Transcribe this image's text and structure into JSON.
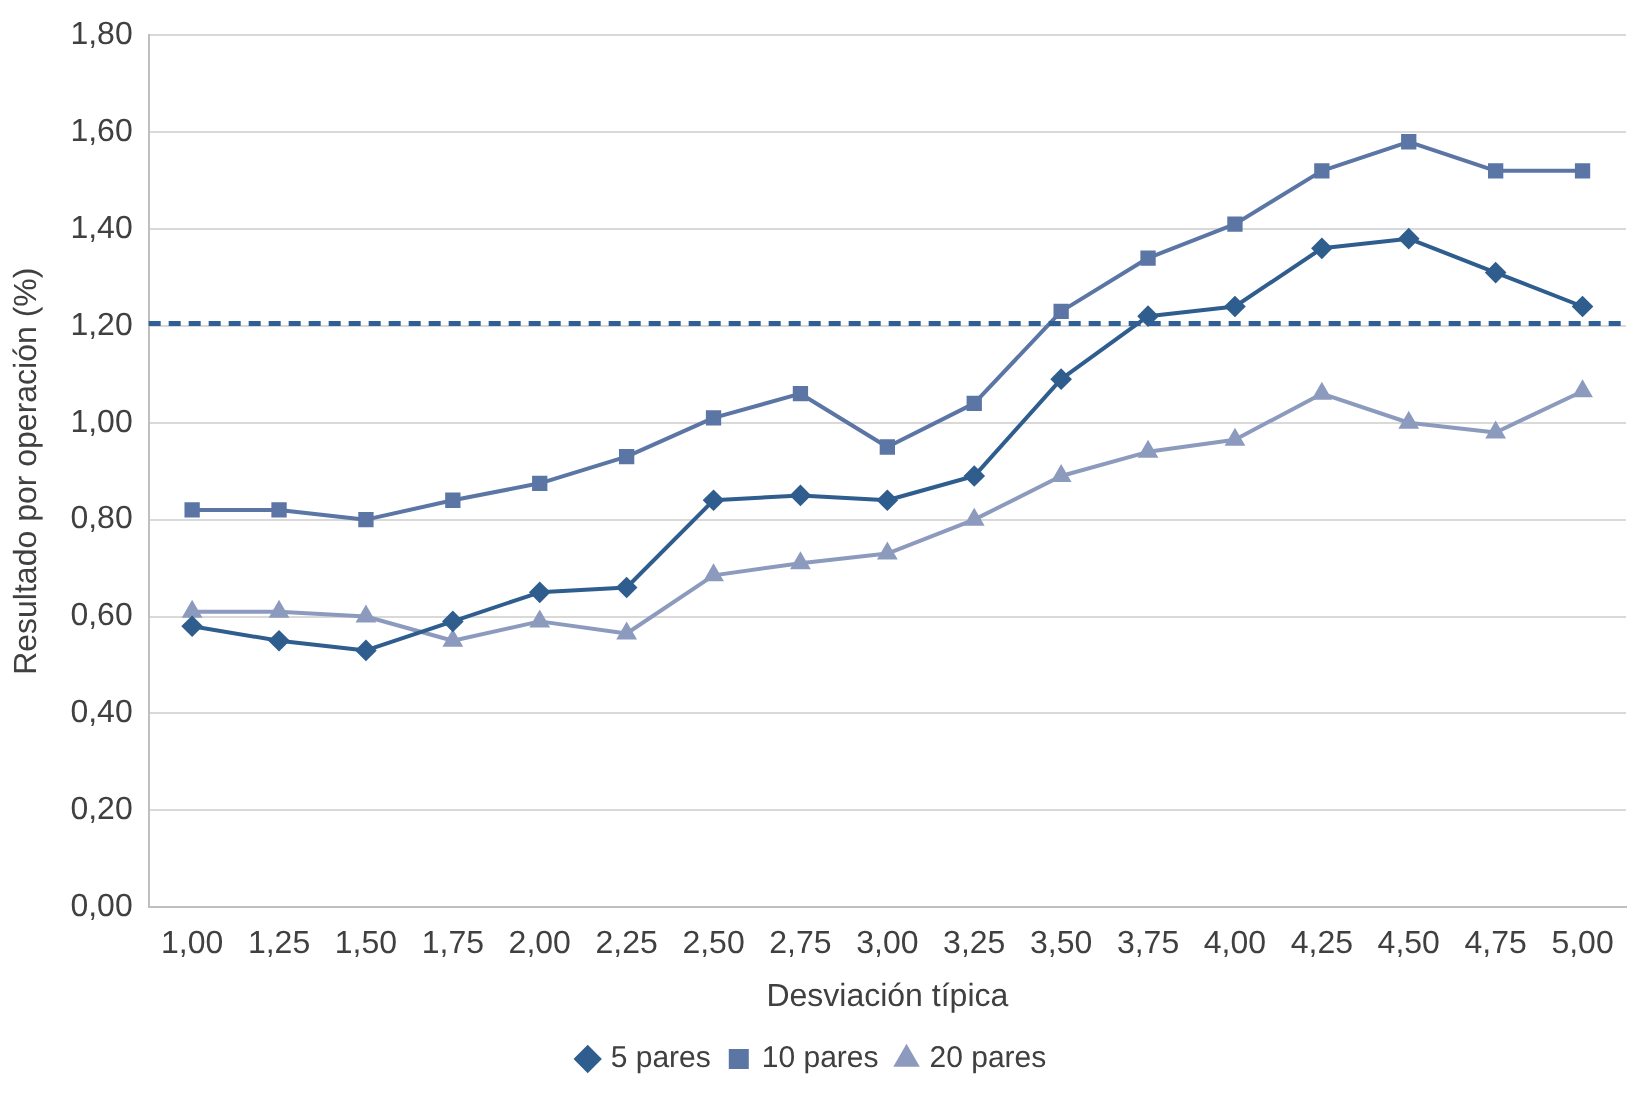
{
  "chart_data": {
    "type": "line",
    "xlabel": "Desviación típica",
    "ylabel": "Resultado por operación (%)",
    "categories": [
      "1,00",
      "1,25",
      "1,50",
      "1,75",
      "2,00",
      "2,25",
      "2,50",
      "2,75",
      "3,00",
      "3,25",
      "3,50",
      "3,75",
      "4,00",
      "4,25",
      "4,50",
      "4,75",
      "5,00"
    ],
    "series": [
      {
        "name": "5 pares",
        "color": "#2e5d8e",
        "marker": "diamond",
        "values": [
          0.58,
          0.55,
          0.53,
          0.59,
          0.65,
          0.66,
          0.84,
          0.85,
          0.84,
          0.89,
          1.09,
          1.22,
          1.24,
          1.36,
          1.38,
          1.31,
          1.24
        ]
      },
      {
        "name": "10 pares",
        "color": "#5b75a5",
        "marker": "square",
        "values": [
          0.82,
          0.82,
          0.8,
          0.84,
          0.875,
          0.93,
          1.01,
          1.06,
          0.95,
          1.04,
          1.23,
          1.34,
          1.41,
          1.52,
          1.58,
          1.52,
          1.52
        ]
      },
      {
        "name": "20 pares",
        "color": "#8c9bbd",
        "marker": "triangle",
        "values": [
          0.61,
          0.61,
          0.6,
          0.55,
          0.59,
          0.565,
          0.685,
          0.71,
          0.73,
          0.8,
          0.89,
          0.94,
          0.965,
          1.06,
          1.0,
          0.98,
          1.065
        ]
      }
    ],
    "ylim": [
      0,
      1.8
    ],
    "yticks": [
      {
        "value": 0,
        "label": "0,00"
      },
      {
        "value": 0.2,
        "label": "0,20"
      },
      {
        "value": 0.4,
        "label": "0,40"
      },
      {
        "value": 0.6,
        "label": "0,60"
      },
      {
        "value": 0.8,
        "label": "0,80"
      },
      {
        "value": 1,
        "label": "1,00"
      },
      {
        "value": 1.2,
        "label": "1,20"
      },
      {
        "value": 1.4,
        "label": "1,40"
      },
      {
        "value": 1.6,
        "label": "1,60"
      },
      {
        "value": 1.8,
        "label": "1,80"
      }
    ],
    "ref_lines": [
      {
        "axis": "y",
        "value": 1.205,
        "color": "#2f5f94",
        "line_style": "dashed"
      }
    ],
    "grid": "y",
    "legend": "bottom",
    "line_style": "solid"
  }
}
